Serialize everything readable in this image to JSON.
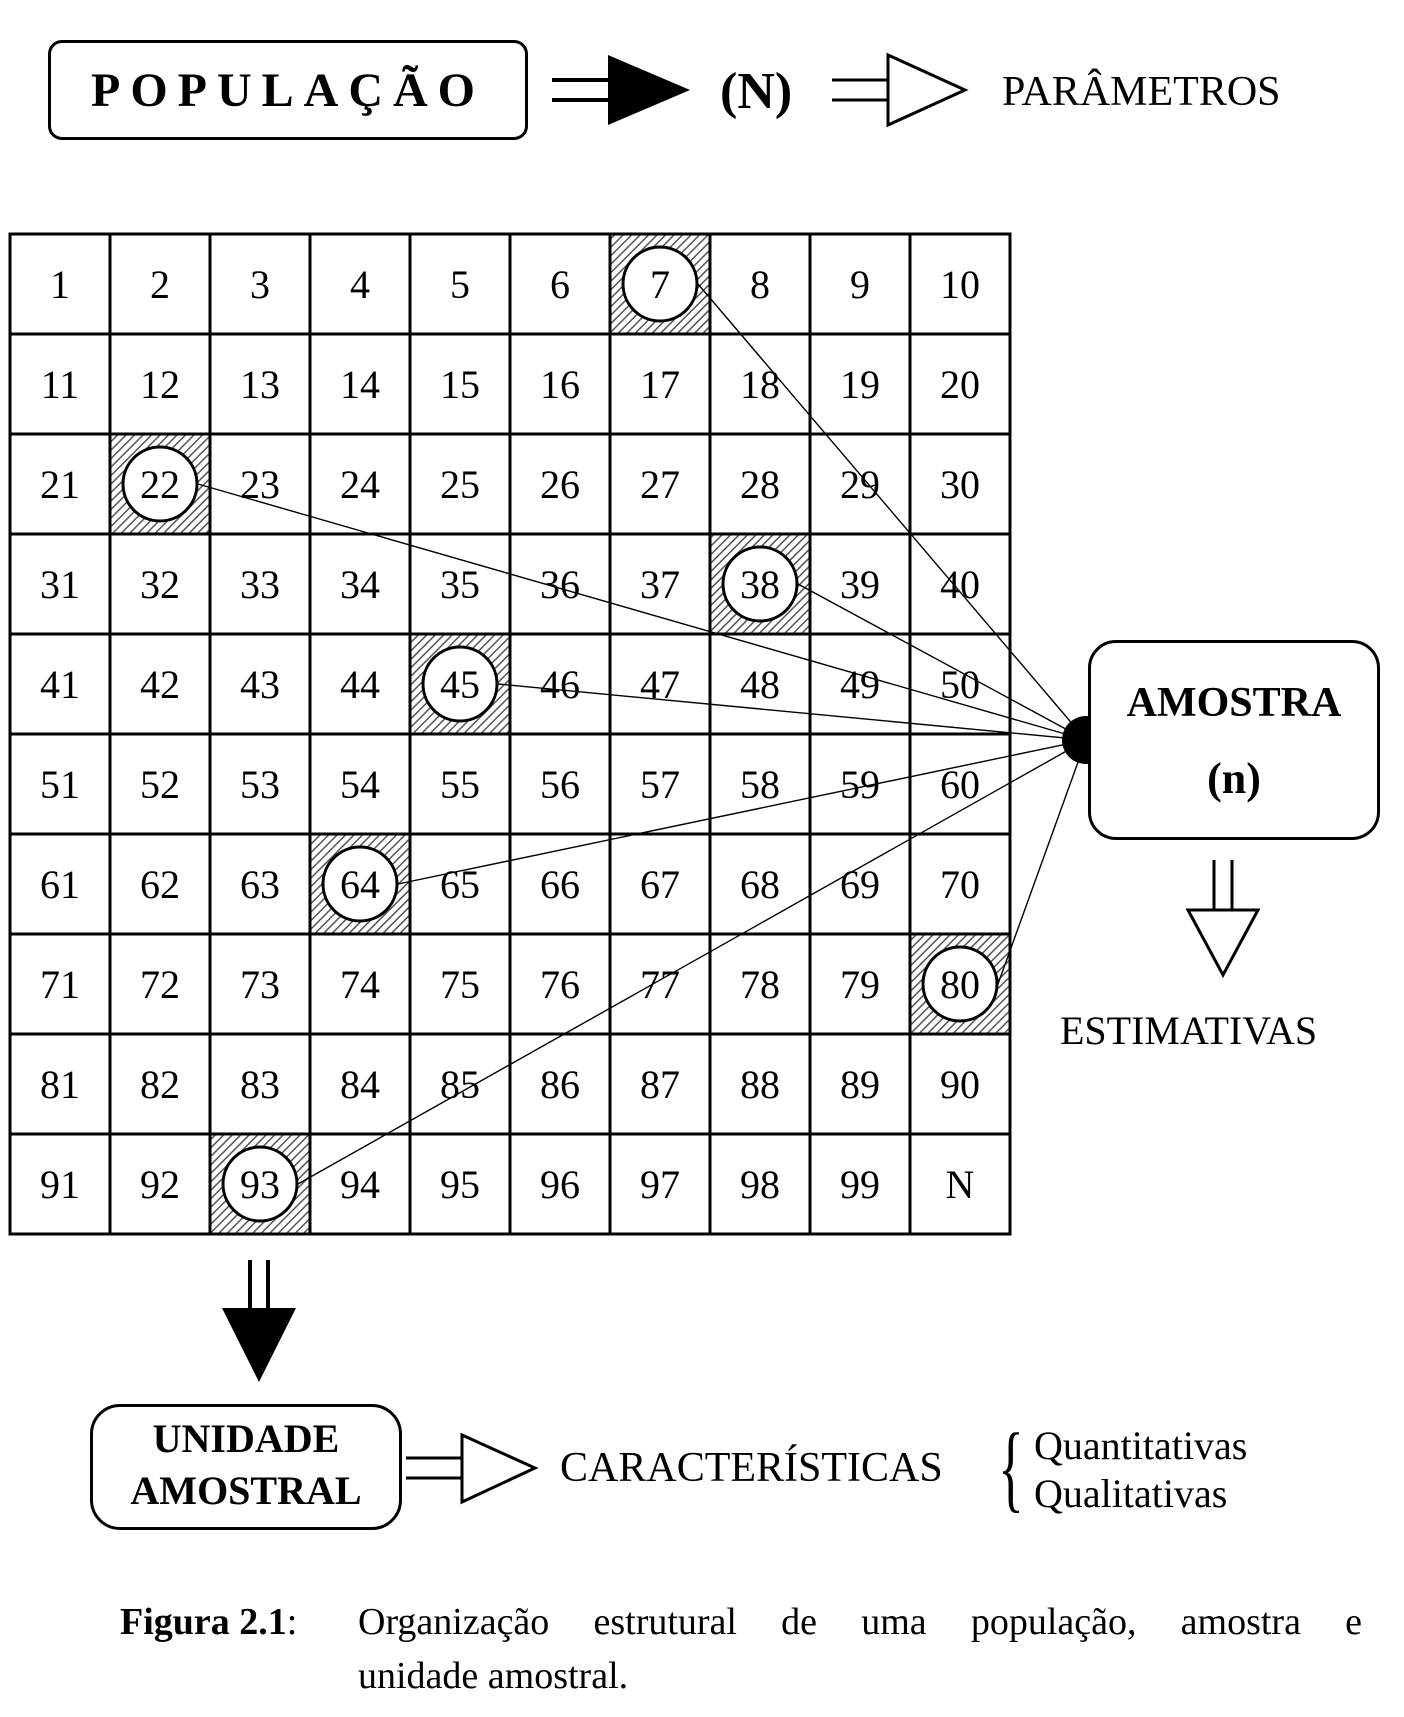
{
  "populacao": {
    "label": "POPULAÇÃO",
    "n_label": "(N)",
    "result_label": "PARÂMETROS"
  },
  "grid": {
    "cells": [
      [
        "1",
        "2",
        "3",
        "4",
        "5",
        "6",
        "7",
        "8",
        "9",
        "10"
      ],
      [
        "11",
        "12",
        "13",
        "14",
        "15",
        "16",
        "17",
        "18",
        "19",
        "20"
      ],
      [
        "21",
        "22",
        "23",
        "24",
        "25",
        "26",
        "27",
        "28",
        "29",
        "30"
      ],
      [
        "31",
        "32",
        "33",
        "34",
        "35",
        "36",
        "37",
        "38",
        "39",
        "40"
      ],
      [
        "41",
        "42",
        "43",
        "44",
        "45",
        "46",
        "47",
        "48",
        "49",
        "50"
      ],
      [
        "51",
        "52",
        "53",
        "54",
        "55",
        "56",
        "57",
        "58",
        "59",
        "60"
      ],
      [
        "61",
        "62",
        "63",
        "64",
        "65",
        "66",
        "67",
        "68",
        "69",
        "70"
      ],
      [
        "71",
        "72",
        "73",
        "74",
        "75",
        "76",
        "77",
        "78",
        "79",
        "80"
      ],
      [
        "81",
        "82",
        "83",
        "84",
        "85",
        "86",
        "87",
        "88",
        "89",
        "90"
      ],
      [
        "91",
        "92",
        "93",
        "94",
        "95",
        "96",
        "97",
        "98",
        "99",
        "N"
      ]
    ],
    "sampled": [
      "7",
      "22",
      "38",
      "45",
      "64",
      "80",
      "93"
    ]
  },
  "amostra": {
    "label": "AMOSTRA",
    "n_label": "(n)",
    "result_label": "ESTIMATIVAS"
  },
  "unidade": {
    "line1": "UNIDADE",
    "line2": "AMOSTRAL",
    "result_label": "CARACTERÍSTICAS",
    "types": [
      "Quantitativas",
      "Qualitativas"
    ]
  },
  "caption": {
    "label": "Figura 2.1",
    "separator": ":",
    "line1": "Organização estrutural de uma população, amostra e",
    "line2": "unidade amostral."
  }
}
